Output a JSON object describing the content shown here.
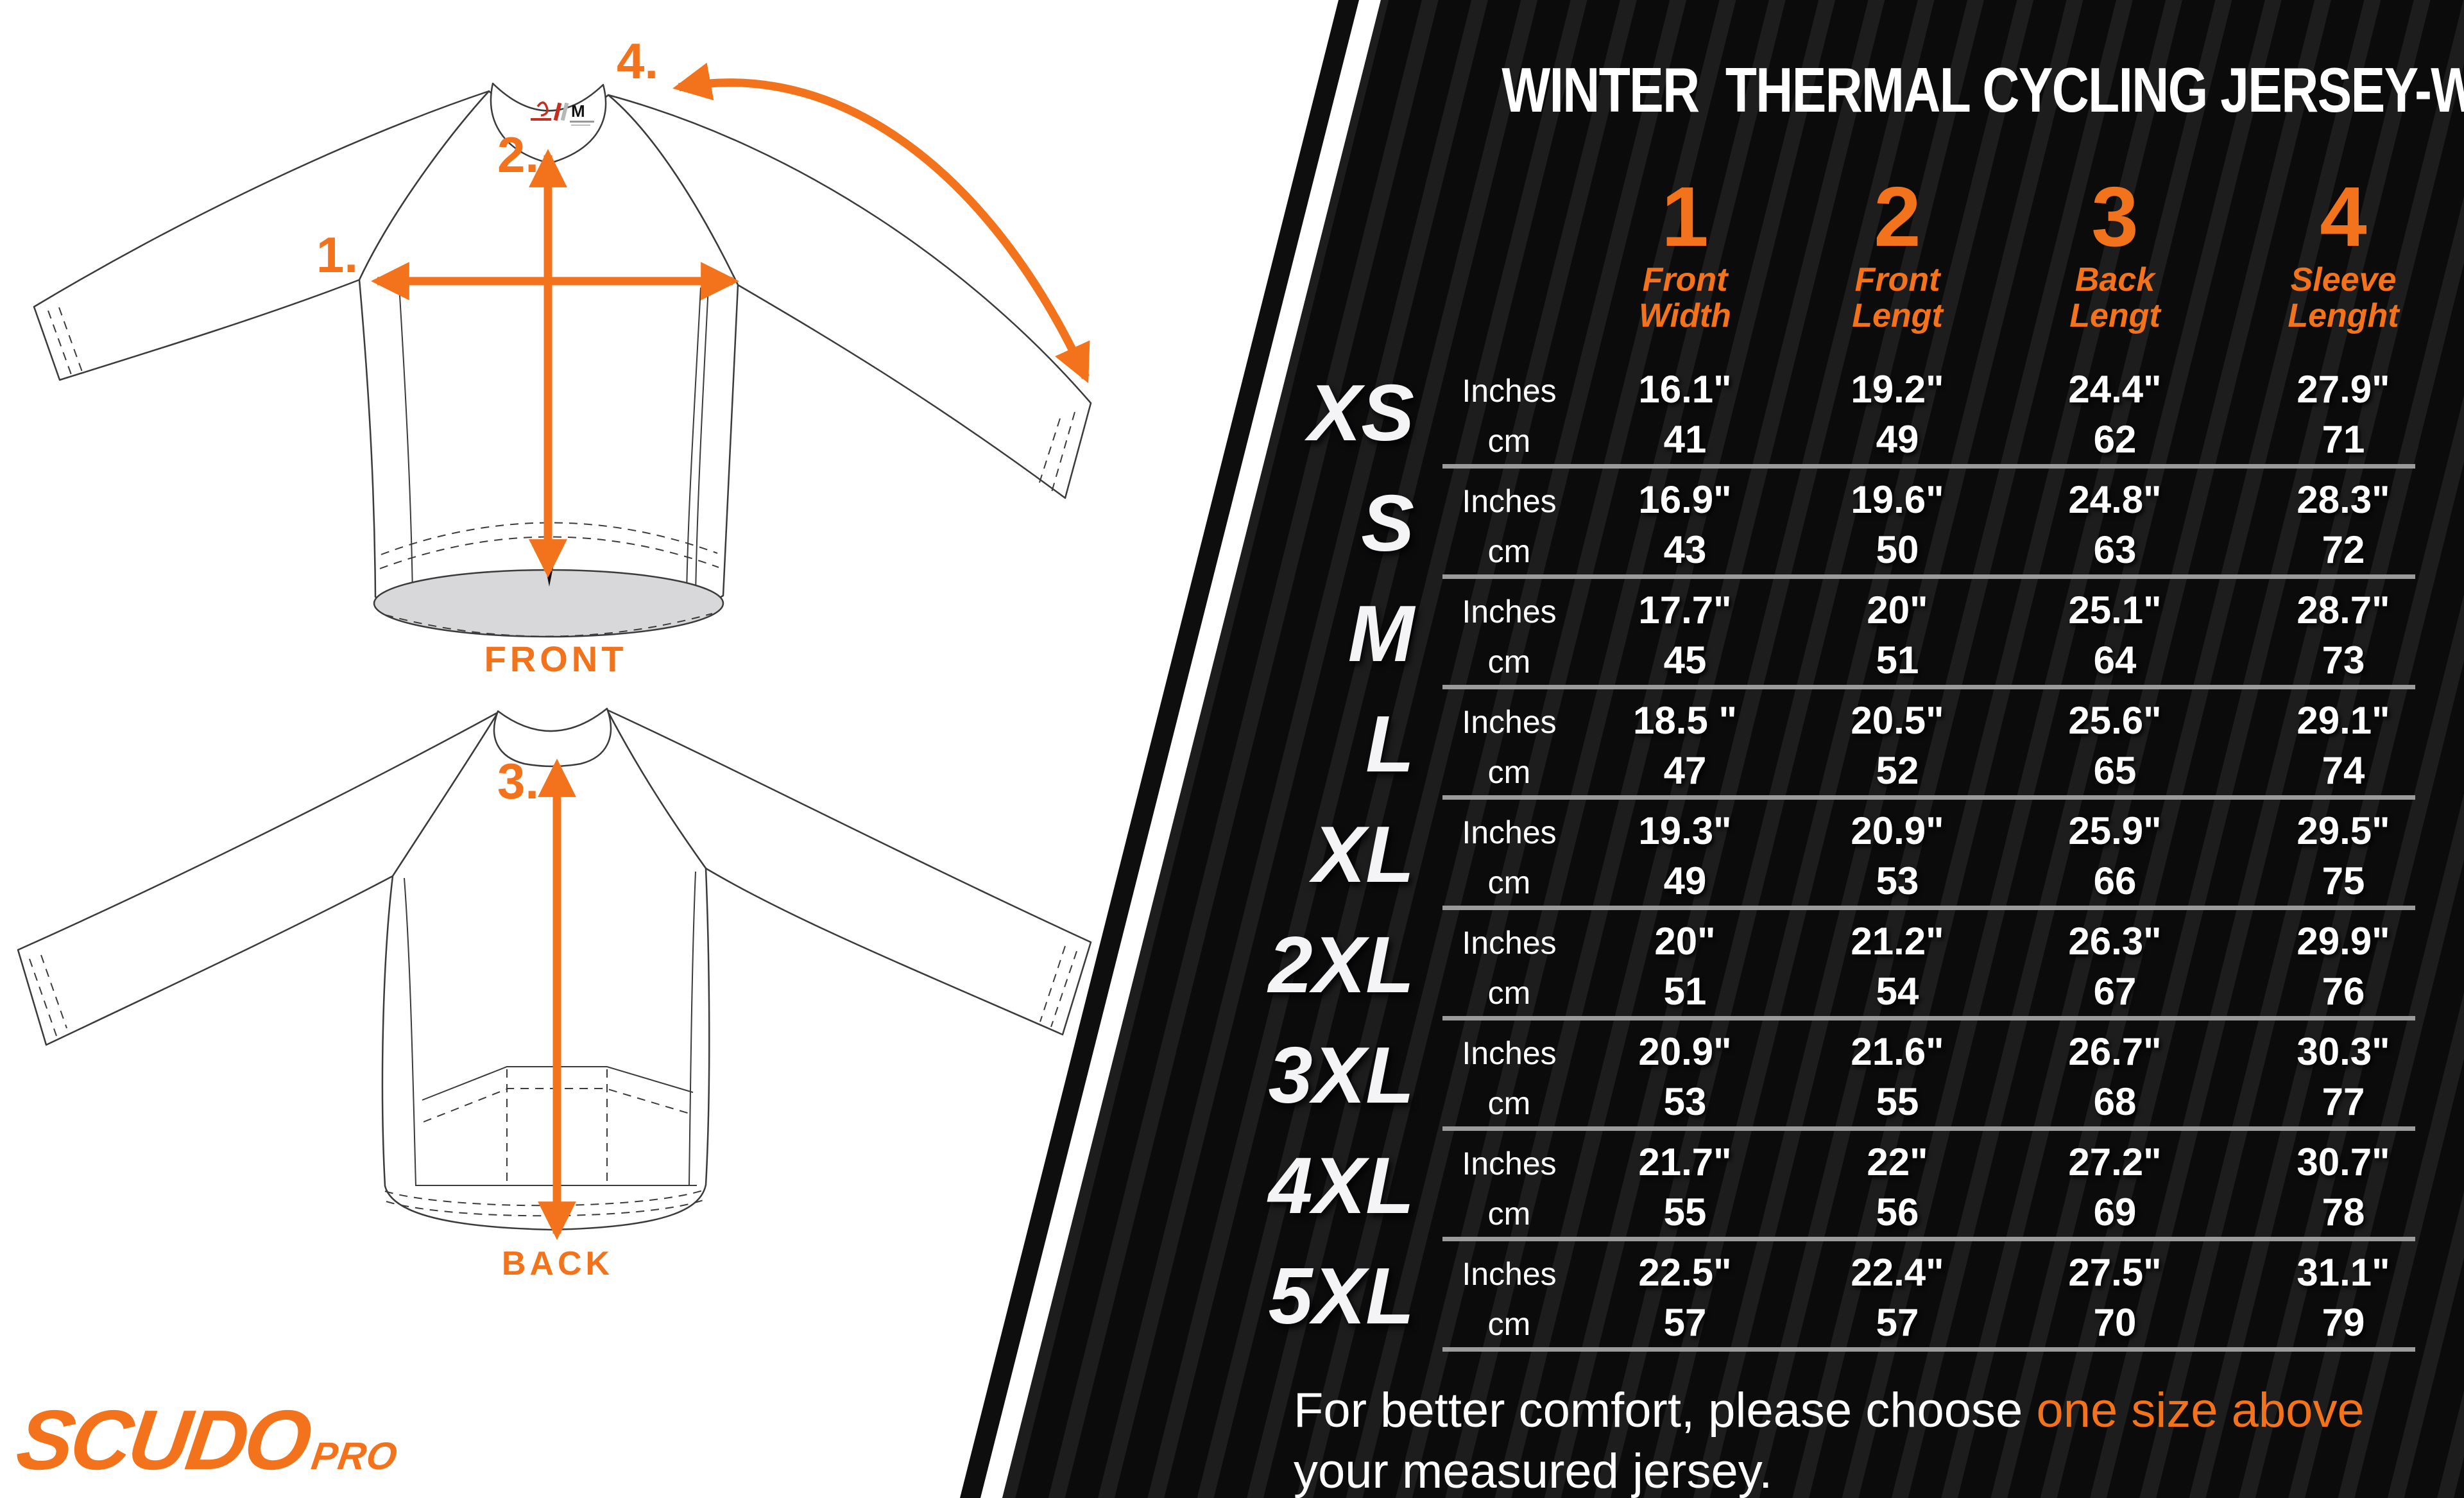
{
  "title": "WINTER  THERMAL CYCLING JERSEY-WOMAN",
  "brand": {
    "name": "SCUDO",
    "suffix": "PRO"
  },
  "colors": {
    "accent": "#f3731c",
    "panel_bg": "#0b0b0b",
    "stripe": "#1d1d1d",
    "separator": "#9b9b9b"
  },
  "diagram": {
    "front_label": "FRONT",
    "back_label": "BACK",
    "markers": {
      "m1": "1.",
      "m2": "2.",
      "m3": "3.",
      "m4": "4."
    },
    "collar_tag_size": "M"
  },
  "table": {
    "units": {
      "inches": "Inches",
      "cm": "cm"
    },
    "columns": [
      {
        "num": "1",
        "label1": "Front",
        "label2": "Width"
      },
      {
        "num": "2",
        "label1": "Front",
        "label2": "Lengt"
      },
      {
        "num": "3",
        "label1": "Back",
        "label2": "Lengt"
      },
      {
        "num": "4",
        "label1": "Sleeve",
        "label2": "Lenght"
      }
    ],
    "rows": [
      {
        "size": "XS",
        "inches": [
          "16.1\"",
          "19.2\"",
          "24.4\"",
          "27.9\""
        ],
        "cm": [
          "41",
          "49",
          "62",
          "71"
        ]
      },
      {
        "size": "S",
        "inches": [
          "16.9\"",
          "19.6\"",
          "24.8\"",
          "28.3\""
        ],
        "cm": [
          "43",
          "50",
          "63",
          "72"
        ]
      },
      {
        "size": "M",
        "inches": [
          "17.7\"",
          "20\"",
          "25.1\"",
          "28.7\""
        ],
        "cm": [
          "45",
          "51",
          "64",
          "73"
        ]
      },
      {
        "size": "L",
        "inches": [
          "18.5 \"",
          "20.5\"",
          "25.6\"",
          "29.1\""
        ],
        "cm": [
          "47",
          "52",
          "65",
          "74"
        ]
      },
      {
        "size": "XL",
        "inches": [
          "19.3\"",
          "20.9\"",
          "25.9\"",
          "29.5\""
        ],
        "cm": [
          "49",
          "53",
          "66",
          "75"
        ]
      },
      {
        "size": "2XL",
        "inches": [
          "20\"",
          "21.2\"",
          "26.3\"",
          "29.9\""
        ],
        "cm": [
          "51",
          "54",
          "67",
          "76"
        ]
      },
      {
        "size": "3XL",
        "inches": [
          "20.9\"",
          "21.6\"",
          "26.7\"",
          "30.3\""
        ],
        "cm": [
          "53",
          "55",
          "68",
          "77"
        ]
      },
      {
        "size": "4XL",
        "inches": [
          "21.7\"",
          "22\"",
          "27.2\"",
          "30.7\""
        ],
        "cm": [
          "55",
          "56",
          "69",
          "78"
        ]
      },
      {
        "size": "5XL",
        "inches": [
          "22.5\"",
          "22.4\"",
          "27.5\"",
          "31.1\""
        ],
        "cm": [
          "57",
          "57",
          "70",
          "79"
        ]
      }
    ]
  },
  "footer": {
    "line1_prefix": "For better comfort, please choose ",
    "line1_highlight": "one size above",
    "line2": "your measured jersey."
  }
}
